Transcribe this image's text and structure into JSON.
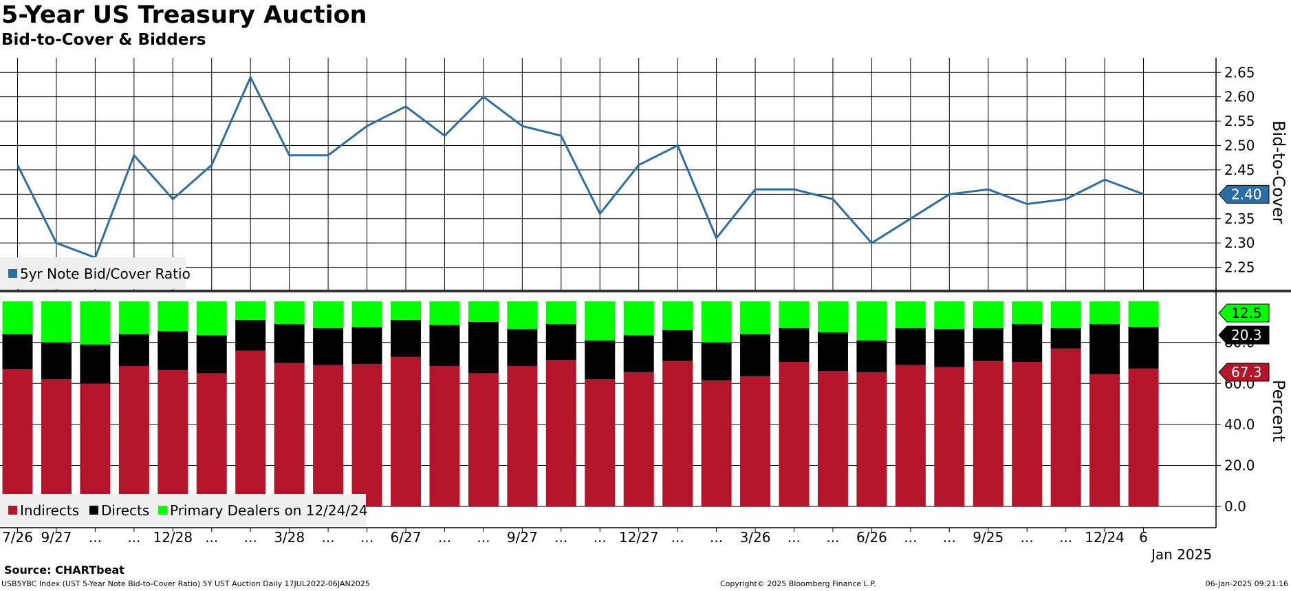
{
  "header": {
    "title": "5-Year US Treasury Auction",
    "subtitle": "Bid-to-Cover & Bidders"
  },
  "footer": {
    "source": "Source: CHARTbeat",
    "description": "USB5YBC Index (UST 5-Year Note Bid-to-Cover Ratio) 5Y UST Auction  Daily 17JUL2022-06JAN2025",
    "copyright": "Copyright© 2025 Bloomberg Finance L.P.",
    "timestamp": "06-Jan-2025 09:21:16"
  },
  "colors": {
    "line": "#2e6da4",
    "indirects": "#b5152b",
    "directs": "#000000",
    "primary_dealers": "#00ff00",
    "grid": "#000000"
  },
  "x_axis": {
    "tick_labels": [
      "7/26",
      "9/27",
      "...",
      "...",
      "12/28",
      "...",
      "...",
      "3/28",
      "...",
      "...",
      "6/27",
      "...",
      "...",
      "9/27",
      "...",
      "...",
      "12/27",
      "...",
      "...",
      "3/26",
      "...",
      "...",
      "6/26",
      "...",
      "...",
      "9/25",
      "...",
      "...",
      "12/24",
      "6"
    ],
    "year_label": "Jan 2025"
  },
  "chart_data": [
    {
      "type": "line",
      "ylabel": "Bid-to-Cover",
      "ylim": [
        2.2,
        2.68
      ],
      "yticks": [
        "2.25",
        "2.30",
        "2.35",
        "2.40",
        "2.45",
        "2.50",
        "2.55",
        "2.60",
        "2.65"
      ],
      "grid": true,
      "legend_position": "bottom-left",
      "series": [
        {
          "name": "5yr Note Bid/Cover Ratio",
          "values": [
            2.46,
            2.3,
            2.27,
            2.48,
            2.39,
            2.46,
            2.64,
            2.48,
            2.48,
            2.54,
            2.58,
            2.52,
            2.6,
            2.54,
            2.52,
            2.36,
            2.46,
            2.5,
            2.31,
            2.41,
            2.41,
            2.39,
            2.3,
            2.35,
            2.4,
            2.41,
            2.38,
            2.39,
            2.43,
            2.4
          ]
        }
      ],
      "last_value_label": "2.40"
    },
    {
      "type": "bar",
      "stacked": true,
      "ylabel": "Percent",
      "ylim": [
        -10,
        100
      ],
      "yticks": [
        "0.0",
        "20.0",
        "40.0",
        "60.0",
        "80.0"
      ],
      "grid": true,
      "legend_position": "bottom-left",
      "series": [
        {
          "name": "Indirects",
          "values": [
            67,
            62,
            60,
            68.5,
            66.5,
            65,
            76,
            70,
            69,
            69.5,
            73,
            68.5,
            65,
            68.5,
            71.5,
            62,
            65.5,
            71,
            61.5,
            63.5,
            70.5,
            66,
            65.5,
            69,
            68,
            71,
            70.5,
            77,
            64.5,
            67.3
          ]
        },
        {
          "name": "Directs",
          "values": [
            17,
            18,
            19,
            15.5,
            19,
            18.5,
            15,
            19,
            18,
            18,
            18,
            20,
            25,
            18,
            17.5,
            19,
            18,
            15,
            18.5,
            20.5,
            16.5,
            19,
            15.5,
            18,
            18.5,
            16,
            18.5,
            10,
            24.5,
            20.3
          ]
        },
        {
          "name": "Primary Dealers on 12/24/24",
          "values": [
            16,
            20,
            21,
            16,
            14.5,
            16.5,
            9,
            11,
            13,
            12.5,
            9,
            11.5,
            10,
            13.5,
            11,
            19,
            16.5,
            14,
            20,
            16,
            13,
            15,
            19,
            13,
            13.5,
            13,
            11,
            13,
            11,
            12.5
          ]
        }
      ],
      "last_value_labels": {
        "primary_dealers": "12.5",
        "directs": "20.3",
        "indirects": "67.3"
      }
    }
  ]
}
